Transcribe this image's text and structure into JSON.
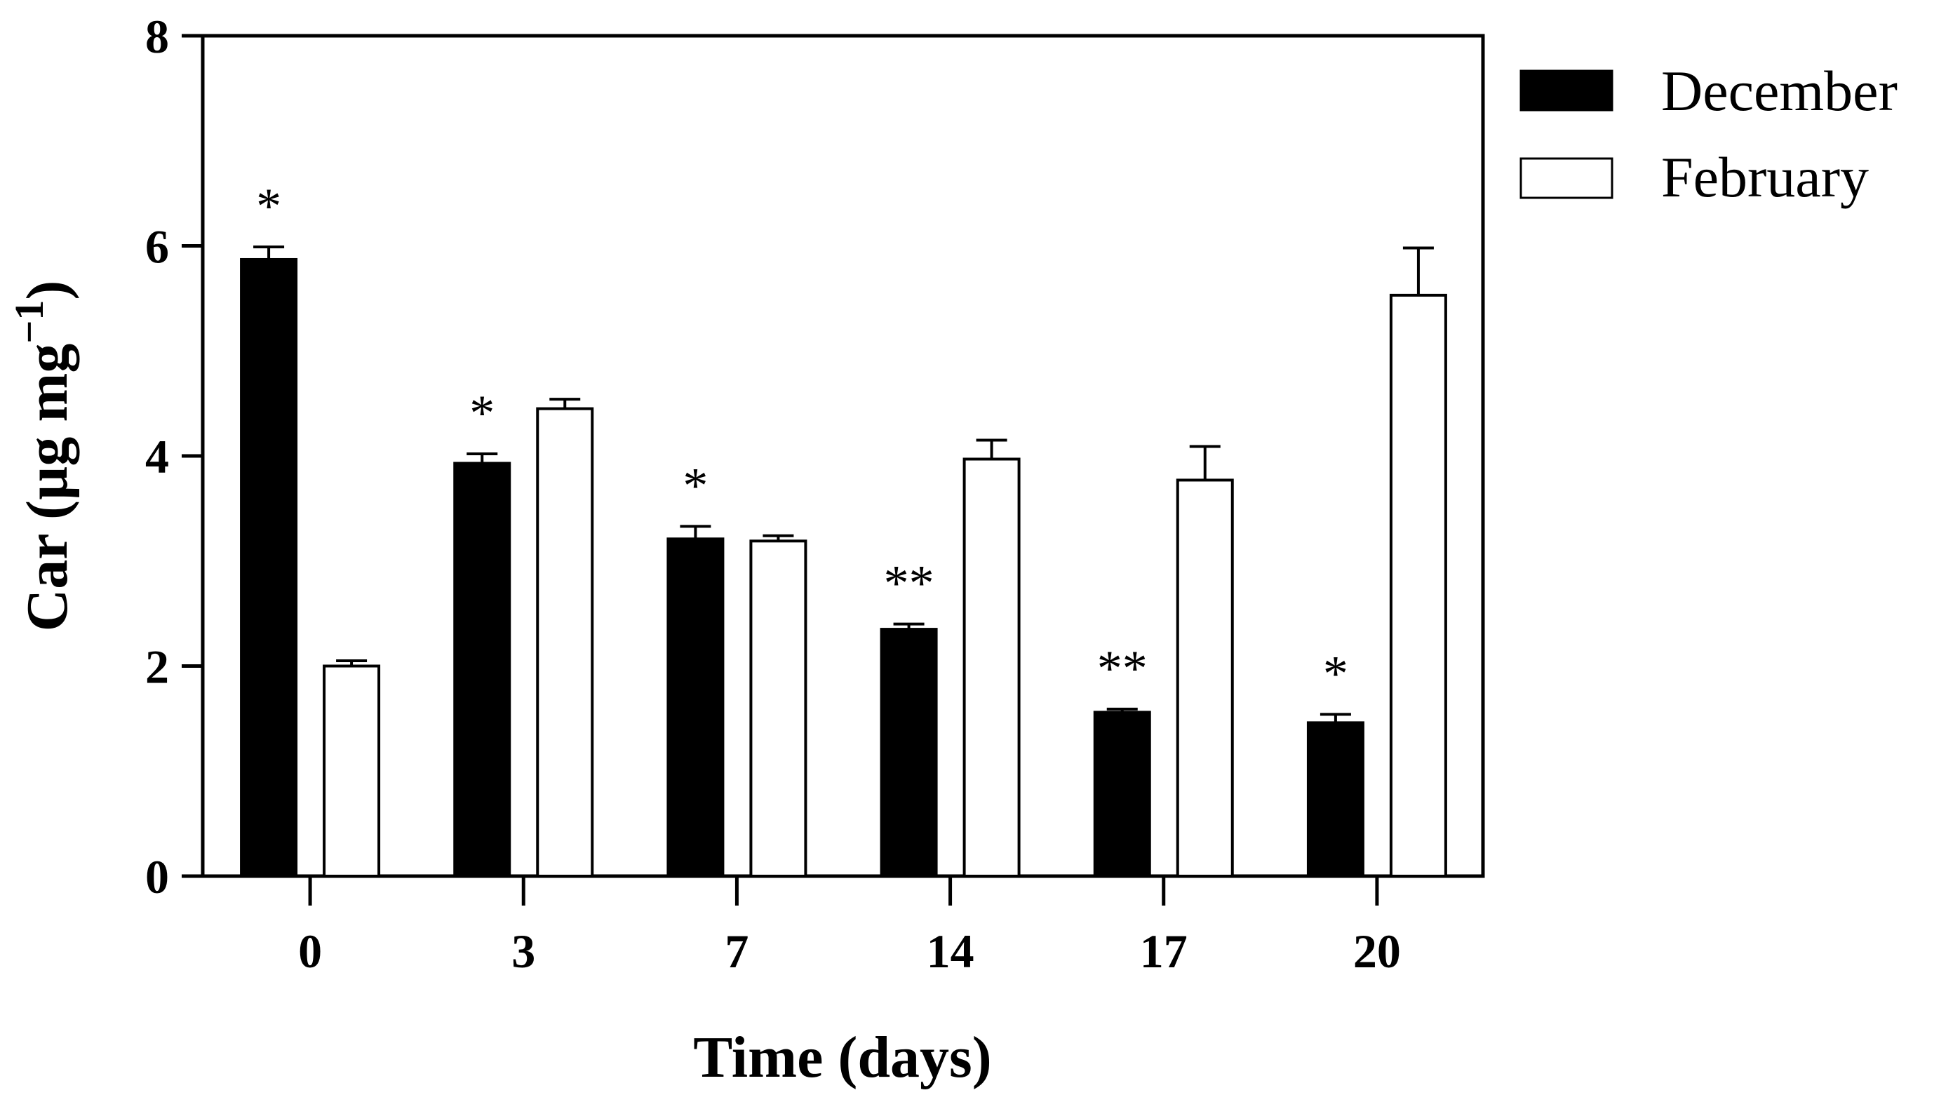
{
  "chart_data": {
    "type": "bar",
    "title": "",
    "xlabel": "Time (days)",
    "ylabel": {
      "prefix": "Car (µg mg",
      "superscript": "−1",
      "suffix": ")"
    },
    "ylim": [
      0,
      8
    ],
    "yticks": [
      "0",
      "2",
      "4",
      "6",
      "8"
    ],
    "grid": false,
    "legend_position": "top-right",
    "categories": [
      "0",
      "3",
      "7",
      "14",
      "17",
      "20"
    ],
    "series": [
      {
        "name": "December",
        "fill": "#000000",
        "values": [
          5.87,
          3.93,
          3.21,
          2.35,
          1.56,
          1.46
        ],
        "errors": [
          0.12,
          0.09,
          0.12,
          0.05,
          0.03,
          0.08
        ]
      },
      {
        "name": "February",
        "fill": "#ffffff",
        "values": [
          2.0,
          4.45,
          3.19,
          3.97,
          3.77,
          5.53
        ],
        "errors": [
          0.05,
          0.09,
          0.05,
          0.18,
          0.32,
          0.45
        ]
      }
    ],
    "significance": [
      "*",
      "*",
      "*",
      "**",
      "**",
      "*"
    ]
  }
}
